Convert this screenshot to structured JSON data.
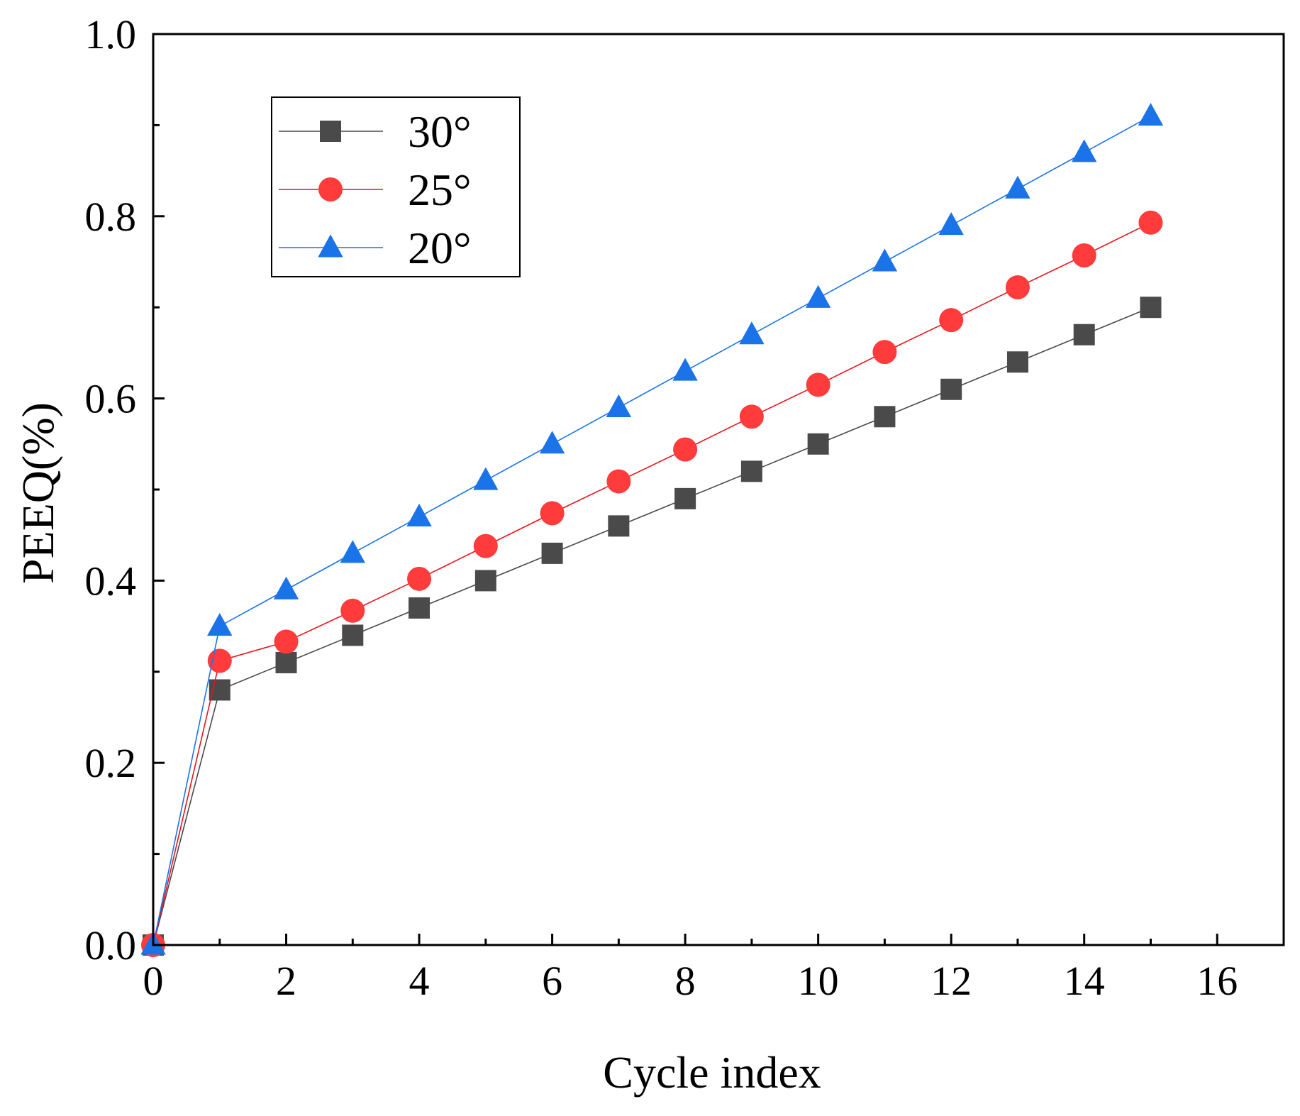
{
  "chart_data": {
    "type": "line",
    "title": "",
    "xlabel": "Cycle index",
    "ylabel": "PEEQ(%)",
    "xlim": [
      0,
      17
    ],
    "ylim": [
      0,
      1.0
    ],
    "xticks": [
      0,
      2,
      4,
      6,
      8,
      10,
      12,
      14,
      16
    ],
    "xtick_labels": [
      "0",
      "2",
      "4",
      "6",
      "8",
      "10",
      "12",
      "14",
      "16"
    ],
    "yticks": [
      0.0,
      0.2,
      0.4,
      0.6,
      0.8,
      1.0
    ],
    "ytick_labels": [
      "0.0",
      "0.2",
      "0.4",
      "0.6",
      "0.8",
      "1.0"
    ],
    "grid": false,
    "legend_position": "top-left",
    "x": [
      0,
      1,
      2,
      3,
      4,
      5,
      6,
      7,
      8,
      9,
      10,
      11,
      12,
      13,
      14,
      15
    ],
    "series": [
      {
        "name": "30°",
        "marker": "square",
        "color": "#4a4a4a",
        "line_color": "#4a4a4a",
        "values": [
          0.0,
          0.28,
          0.31,
          0.34,
          0.37,
          0.4,
          0.43,
          0.46,
          0.49,
          0.52,
          0.55,
          0.58,
          0.61,
          0.64,
          0.67,
          0.7
        ]
      },
      {
        "name": "25°",
        "marker": "circle",
        "color": "#ff3b3b",
        "line_color": "#e8131b",
        "values": [
          0.0,
          0.312,
          0.333,
          0.367,
          0.402,
          0.438,
          0.474,
          0.509,
          0.544,
          0.58,
          0.615,
          0.651,
          0.686,
          0.722,
          0.757,
          0.793
        ]
      },
      {
        "name": "20°",
        "marker": "triangle",
        "color": "#1a73e8",
        "line_color": "#1a73e8",
        "values": [
          0.0,
          0.35,
          0.39,
          0.43,
          0.47,
          0.51,
          0.55,
          0.59,
          0.63,
          0.67,
          0.71,
          0.75,
          0.79,
          0.83,
          0.87,
          0.91
        ]
      }
    ]
  }
}
